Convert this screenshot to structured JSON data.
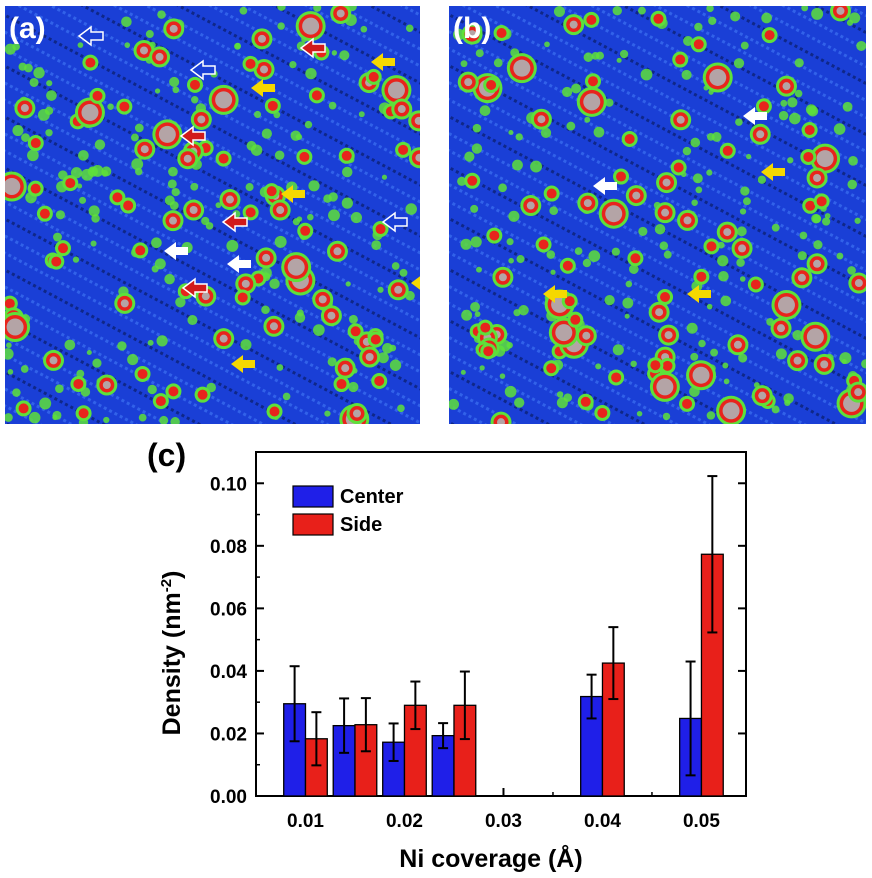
{
  "panels": {
    "a": {
      "label": "(a)"
    },
    "b": {
      "label": "(b)"
    },
    "c": {
      "label": "(c)"
    }
  },
  "colors": {
    "stm_background": "#1a3fd6",
    "stm_ring": "#5ee03a",
    "stm_core": "#e8241c",
    "stm_peak": "#b4a4a6",
    "arrow_yellow": "#f5d800",
    "arrow_red": "#d11a1a",
    "arrow_white": "#ffffff",
    "center_bar": "#1f1fe8",
    "side_bar": "#e8201a"
  },
  "chart_data": {
    "type": "bar",
    "xlabel": "Ni coverage (Å)",
    "ylabel": "Density (nm",
    "ylabel_sup": "-2",
    "ylabel_close": ")",
    "xlim": [
      0.005,
      0.0545
    ],
    "ylim": [
      0.0,
      0.11
    ],
    "xticks": [
      0.01,
      0.02,
      0.03,
      0.04,
      0.05
    ],
    "xtick_labels": [
      "0.01",
      "0.02",
      "0.03",
      "0.04",
      "0.05"
    ],
    "yticks": [
      0.0,
      0.02,
      0.04,
      0.06,
      0.08,
      0.1
    ],
    "ytick_labels": [
      "0.00",
      "0.02",
      "0.04",
      "0.06",
      "0.08",
      "0.10"
    ],
    "legend_position": "top-left",
    "groups": [
      0.01,
      0.015,
      0.02,
      0.025,
      0.04,
      0.05
    ],
    "series": [
      {
        "name": "Center",
        "color": "#1f1fe8",
        "values": [
          0.0295,
          0.0225,
          0.0172,
          0.0193,
          0.0318,
          0.0248
        ],
        "errors": [
          0.012,
          0.0087,
          0.006,
          0.004,
          0.007,
          0.0182
        ]
      },
      {
        "name": "Side",
        "color": "#e8201a",
        "values": [
          0.0183,
          0.0228,
          0.029,
          0.029,
          0.0425,
          0.0773
        ],
        "errors": [
          0.0085,
          0.0085,
          0.0076,
          0.0108,
          0.0115,
          0.025
        ]
      }
    ]
  }
}
